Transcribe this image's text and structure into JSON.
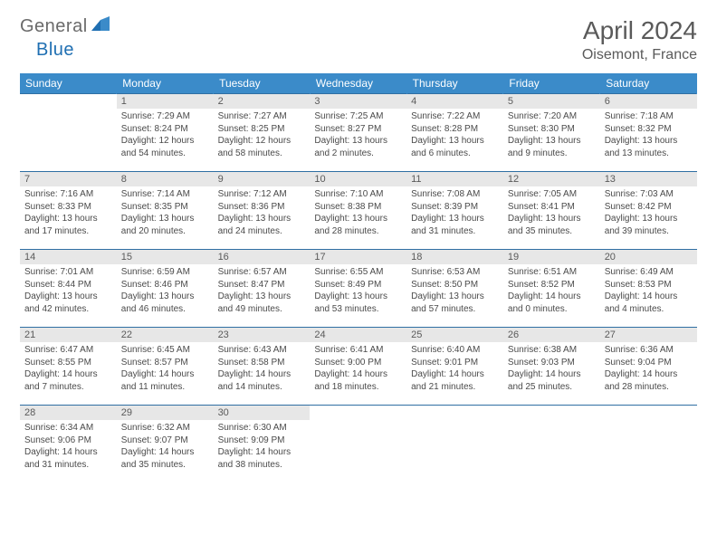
{
  "logo": {
    "text1": "General",
    "text2": "Blue"
  },
  "title": "April 2024",
  "location": "Oisemont, France",
  "colors": {
    "header_bg": "#3b8bc9",
    "header_text": "#ffffff",
    "daynum_bg": "#e7e7e7",
    "text": "#5a5a5a",
    "border": "#2f6fa3"
  },
  "weekdays": [
    "Sunday",
    "Monday",
    "Tuesday",
    "Wednesday",
    "Thursday",
    "Friday",
    "Saturday"
  ],
  "weeks": [
    [
      null,
      {
        "n": "1",
        "sr": "Sunrise: 7:29 AM",
        "ss": "Sunset: 8:24 PM",
        "dl": "Daylight: 12 hours and 54 minutes."
      },
      {
        "n": "2",
        "sr": "Sunrise: 7:27 AM",
        "ss": "Sunset: 8:25 PM",
        "dl": "Daylight: 12 hours and 58 minutes."
      },
      {
        "n": "3",
        "sr": "Sunrise: 7:25 AM",
        "ss": "Sunset: 8:27 PM",
        "dl": "Daylight: 13 hours and 2 minutes."
      },
      {
        "n": "4",
        "sr": "Sunrise: 7:22 AM",
        "ss": "Sunset: 8:28 PM",
        "dl": "Daylight: 13 hours and 6 minutes."
      },
      {
        "n": "5",
        "sr": "Sunrise: 7:20 AM",
        "ss": "Sunset: 8:30 PM",
        "dl": "Daylight: 13 hours and 9 minutes."
      },
      {
        "n": "6",
        "sr": "Sunrise: 7:18 AM",
        "ss": "Sunset: 8:32 PM",
        "dl": "Daylight: 13 hours and 13 minutes."
      }
    ],
    [
      {
        "n": "7",
        "sr": "Sunrise: 7:16 AM",
        "ss": "Sunset: 8:33 PM",
        "dl": "Daylight: 13 hours and 17 minutes."
      },
      {
        "n": "8",
        "sr": "Sunrise: 7:14 AM",
        "ss": "Sunset: 8:35 PM",
        "dl": "Daylight: 13 hours and 20 minutes."
      },
      {
        "n": "9",
        "sr": "Sunrise: 7:12 AM",
        "ss": "Sunset: 8:36 PM",
        "dl": "Daylight: 13 hours and 24 minutes."
      },
      {
        "n": "10",
        "sr": "Sunrise: 7:10 AM",
        "ss": "Sunset: 8:38 PM",
        "dl": "Daylight: 13 hours and 28 minutes."
      },
      {
        "n": "11",
        "sr": "Sunrise: 7:08 AM",
        "ss": "Sunset: 8:39 PM",
        "dl": "Daylight: 13 hours and 31 minutes."
      },
      {
        "n": "12",
        "sr": "Sunrise: 7:05 AM",
        "ss": "Sunset: 8:41 PM",
        "dl": "Daylight: 13 hours and 35 minutes."
      },
      {
        "n": "13",
        "sr": "Sunrise: 7:03 AM",
        "ss": "Sunset: 8:42 PM",
        "dl": "Daylight: 13 hours and 39 minutes."
      }
    ],
    [
      {
        "n": "14",
        "sr": "Sunrise: 7:01 AM",
        "ss": "Sunset: 8:44 PM",
        "dl": "Daylight: 13 hours and 42 minutes."
      },
      {
        "n": "15",
        "sr": "Sunrise: 6:59 AM",
        "ss": "Sunset: 8:46 PM",
        "dl": "Daylight: 13 hours and 46 minutes."
      },
      {
        "n": "16",
        "sr": "Sunrise: 6:57 AM",
        "ss": "Sunset: 8:47 PM",
        "dl": "Daylight: 13 hours and 49 minutes."
      },
      {
        "n": "17",
        "sr": "Sunrise: 6:55 AM",
        "ss": "Sunset: 8:49 PM",
        "dl": "Daylight: 13 hours and 53 minutes."
      },
      {
        "n": "18",
        "sr": "Sunrise: 6:53 AM",
        "ss": "Sunset: 8:50 PM",
        "dl": "Daylight: 13 hours and 57 minutes."
      },
      {
        "n": "19",
        "sr": "Sunrise: 6:51 AM",
        "ss": "Sunset: 8:52 PM",
        "dl": "Daylight: 14 hours and 0 minutes."
      },
      {
        "n": "20",
        "sr": "Sunrise: 6:49 AM",
        "ss": "Sunset: 8:53 PM",
        "dl": "Daylight: 14 hours and 4 minutes."
      }
    ],
    [
      {
        "n": "21",
        "sr": "Sunrise: 6:47 AM",
        "ss": "Sunset: 8:55 PM",
        "dl": "Daylight: 14 hours and 7 minutes."
      },
      {
        "n": "22",
        "sr": "Sunrise: 6:45 AM",
        "ss": "Sunset: 8:57 PM",
        "dl": "Daylight: 14 hours and 11 minutes."
      },
      {
        "n": "23",
        "sr": "Sunrise: 6:43 AM",
        "ss": "Sunset: 8:58 PM",
        "dl": "Daylight: 14 hours and 14 minutes."
      },
      {
        "n": "24",
        "sr": "Sunrise: 6:41 AM",
        "ss": "Sunset: 9:00 PM",
        "dl": "Daylight: 14 hours and 18 minutes."
      },
      {
        "n": "25",
        "sr": "Sunrise: 6:40 AM",
        "ss": "Sunset: 9:01 PM",
        "dl": "Daylight: 14 hours and 21 minutes."
      },
      {
        "n": "26",
        "sr": "Sunrise: 6:38 AM",
        "ss": "Sunset: 9:03 PM",
        "dl": "Daylight: 14 hours and 25 minutes."
      },
      {
        "n": "27",
        "sr": "Sunrise: 6:36 AM",
        "ss": "Sunset: 9:04 PM",
        "dl": "Daylight: 14 hours and 28 minutes."
      }
    ],
    [
      {
        "n": "28",
        "sr": "Sunrise: 6:34 AM",
        "ss": "Sunset: 9:06 PM",
        "dl": "Daylight: 14 hours and 31 minutes."
      },
      {
        "n": "29",
        "sr": "Sunrise: 6:32 AM",
        "ss": "Sunset: 9:07 PM",
        "dl": "Daylight: 14 hours and 35 minutes."
      },
      {
        "n": "30",
        "sr": "Sunrise: 6:30 AM",
        "ss": "Sunset: 9:09 PM",
        "dl": "Daylight: 14 hours and 38 minutes."
      },
      null,
      null,
      null,
      null
    ]
  ]
}
